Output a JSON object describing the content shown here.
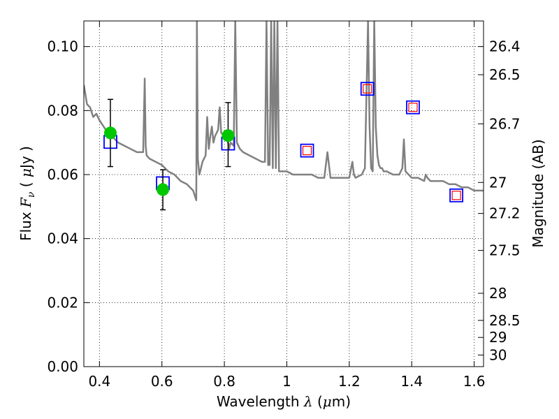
{
  "chart_data": {
    "type": "scatter",
    "title": "",
    "xlabel_parts": [
      "Wavelength  ",
      "λ",
      " (",
      "μ",
      "m)"
    ],
    "ylabel_parts": [
      "Flux  ",
      "F",
      "ν",
      "  ( ",
      "μ",
      "Jy )"
    ],
    "y2label": "Magnitude (AB)",
    "xlim": [
      0.35,
      1.63
    ],
    "ylim": [
      0.0,
      0.108
    ],
    "grid": true,
    "x_ticks": [
      0.4,
      0.6,
      0.8,
      1.0,
      1.2,
      1.4,
      1.6
    ],
    "x_tick_labels": [
      "0.4",
      "0.6",
      "0.8",
      "1",
      "1.2",
      "1.4",
      "1.6"
    ],
    "y_ticks": [
      0.0,
      0.02,
      0.04,
      0.06,
      0.08,
      0.1
    ],
    "y_tick_labels": [
      "0.00",
      "0.02",
      "0.04",
      "0.06",
      "0.08",
      "0.10"
    ],
    "y2_ticks": [
      26.4,
      26.5,
      26.7,
      27,
      27.2,
      27.5,
      28,
      28.5,
      29,
      30
    ],
    "y2_tick_labels": [
      "26.4",
      "26.5",
      "26.7",
      "27",
      "27.2",
      "27.5",
      "28",
      "28.5",
      "29",
      "30"
    ],
    "series": [
      {
        "marker": "line",
        "color": "#808080",
        "x": [
          0.35,
          0.36,
          0.37,
          0.38,
          0.39,
          0.4,
          0.42,
          0.44,
          0.46,
          0.48,
          0.5,
          0.52,
          0.54,
          0.545,
          0.548,
          0.551,
          0.56,
          0.58,
          0.6,
          0.62,
          0.64,
          0.66,
          0.68,
          0.7,
          0.71,
          0.712,
          0.715,
          0.72,
          0.725,
          0.73,
          0.74,
          0.745,
          0.75,
          0.755,
          0.76,
          0.765,
          0.77,
          0.78,
          0.785,
          0.79,
          0.8,
          0.81,
          0.815,
          0.82,
          0.83,
          0.835,
          0.84,
          0.845,
          0.85,
          0.86,
          0.88,
          0.9,
          0.92,
          0.93,
          0.935,
          0.94,
          0.945,
          0.95,
          0.955,
          0.96,
          0.965,
          0.97,
          0.975,
          0.98,
          1.0,
          1.02,
          1.04,
          1.06,
          1.08,
          1.1,
          1.12,
          1.13,
          1.14,
          1.16,
          1.18,
          1.2,
          1.21,
          1.215,
          1.22,
          1.24,
          1.25,
          1.26,
          1.265,
          1.27,
          1.275,
          1.28,
          1.285,
          1.29,
          1.295,
          1.3,
          1.305,
          1.31,
          1.32,
          1.34,
          1.36,
          1.37,
          1.375,
          1.38,
          1.39,
          1.4,
          1.42,
          1.44,
          1.44,
          1.445,
          1.45,
          1.46,
          1.48,
          1.5,
          1.52,
          1.54,
          1.56,
          1.58,
          1.6,
          1.63
        ],
        "y": [
          0.088,
          0.082,
          0.081,
          0.078,
          0.079,
          0.077,
          0.074,
          0.072,
          0.07,
          0.069,
          0.068,
          0.067,
          0.067,
          0.09,
          0.069,
          0.066,
          0.065,
          0.064,
          0.063,
          0.061,
          0.06,
          0.058,
          0.057,
          0.055,
          0.052,
          0.108,
          0.065,
          0.06,
          0.062,
          0.064,
          0.066,
          0.078,
          0.068,
          0.072,
          0.075,
          0.07,
          0.072,
          0.074,
          0.081,
          0.073,
          0.072,
          0.071,
          0.068,
          0.07,
          0.069,
          0.108,
          0.07,
          0.069,
          0.068,
          0.067,
          0.066,
          0.065,
          0.064,
          0.064,
          0.108,
          0.063,
          0.063,
          0.108,
          0.062,
          0.108,
          0.062,
          0.108,
          0.061,
          0.061,
          0.061,
          0.06,
          0.06,
          0.06,
          0.06,
          0.059,
          0.059,
          0.067,
          0.059,
          0.059,
          0.059,
          0.059,
          0.064,
          0.06,
          0.059,
          0.06,
          0.062,
          0.108,
          0.075,
          0.062,
          0.061,
          0.108,
          0.075,
          0.066,
          0.063,
          0.062,
          0.062,
          0.061,
          0.061,
          0.06,
          0.06,
          0.062,
          0.071,
          0.061,
          0.06,
          0.059,
          0.059,
          0.058,
          0.058,
          0.06,
          0.059,
          0.058,
          0.058,
          0.058,
          0.057,
          0.057,
          0.056,
          0.056,
          0.055,
          0.055
        ]
      },
      {
        "marker": "square",
        "color": "#0000ff",
        "x": [
          0.435,
          0.603,
          0.812,
          1.065,
          1.258,
          1.404,
          1.543
        ],
        "y": [
          0.0702,
          0.0573,
          0.0697,
          0.0675,
          0.0868,
          0.081,
          0.0535
        ]
      },
      {
        "marker": "small-square",
        "color": "#ff0000",
        "x": [
          1.065,
          1.258,
          1.404,
          1.543
        ],
        "y": [
          0.0675,
          0.0868,
          0.081,
          0.0535
        ]
      },
      {
        "marker": "circle",
        "color": "#00c800",
        "x": [
          0.435,
          0.603,
          0.812
        ],
        "y": [
          0.073,
          0.0553,
          0.0722
        ],
        "err_low": [
          0.0625,
          0.049,
          0.0625
        ],
        "err_high": [
          0.0835,
          0.0615,
          0.0825
        ]
      }
    ]
  }
}
